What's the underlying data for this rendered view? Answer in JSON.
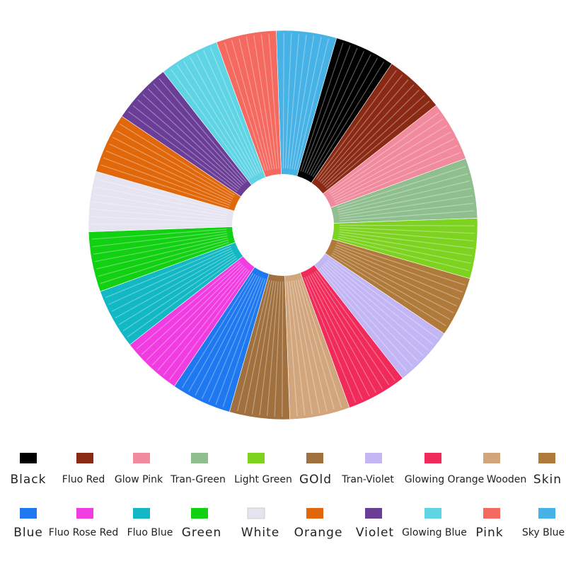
{
  "swatches": [
    {
      "label": "Black",
      "color": "#000000"
    },
    {
      "label": "Fluo Red",
      "color": "#8b2a14"
    },
    {
      "label": "Glow Pink",
      "color": "#f08a9c"
    },
    {
      "label": "Tran-Green",
      "color": "#8fbf8f"
    },
    {
      "label": "Light Green",
      "color": "#7dd320"
    },
    {
      "label": "GOld",
      "color": "#a0703e"
    },
    {
      "label": "Tran-Violet",
      "color": "#c2b6f4"
    },
    {
      "label": "Glowing Orange",
      "color": "#f02a5a"
    },
    {
      "label": "Wooden",
      "color": "#d2a67c"
    },
    {
      "label": "Skin",
      "color": "#b07a3a"
    },
    {
      "label": "Blue",
      "color": "#1e78f0"
    },
    {
      "label": "Fluo Rose Red",
      "color": "#f03ce0"
    },
    {
      "label": "Fluo Blue",
      "color": "#12b8c4"
    },
    {
      "label": "Green",
      "color": "#12d012"
    },
    {
      "label": "White",
      "color": "#e6e4f0"
    },
    {
      "label": "Orange",
      "color": "#e0680a"
    },
    {
      "label": "Violet",
      "color": "#6a3e96"
    },
    {
      "label": "Glowing Blue",
      "color": "#5ed4e4"
    },
    {
      "label": "Pink",
      "color": "#f56a60"
    },
    {
      "label": "Sky Blue",
      "color": "#46b2e6"
    }
  ]
}
